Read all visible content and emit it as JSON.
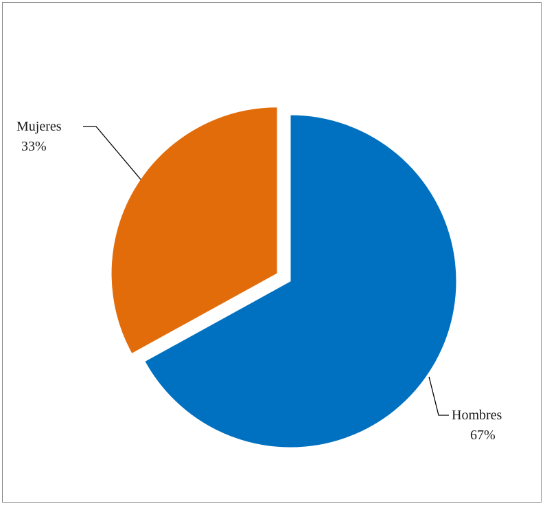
{
  "chart_data": {
    "type": "pie",
    "title": "",
    "slices": [
      {
        "label": "Hombres",
        "value": 67,
        "value_label": "67%",
        "color": "#0070C0",
        "exploded": false
      },
      {
        "label": "Mujeres",
        "value": 33,
        "value_label": "33%",
        "color": "#E36C0A",
        "exploded": true
      }
    ],
    "start_angle_deg": 0,
    "direction": "clockwise",
    "legend": "none",
    "data_labels": "outside-with-leader-lines"
  }
}
